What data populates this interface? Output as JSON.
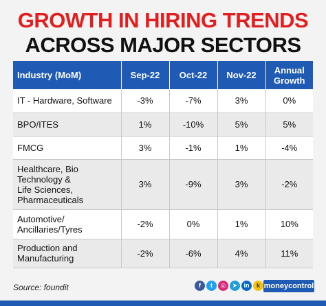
{
  "title_line1": "GROWTH IN HIRING TRENDS",
  "title_line2": "ACROSS MAJOR SECTORS",
  "source": "Source: foundit",
  "brand": "moneycontrol",
  "colors": {
    "title_red": "#e02020",
    "header_blue": "#1f5bb5",
    "brand_blue": "#1f5bb5"
  },
  "social_icons": [
    "facebook-icon",
    "twitter-icon",
    "instagram-icon",
    "telegram-icon",
    "linkedin-icon",
    "koo-icon"
  ],
  "chart_data": {
    "type": "table",
    "columns": [
      "Industry (MoM)",
      "Sep-22",
      "Oct-22",
      "Nov-22",
      "Annual\nGrowth"
    ],
    "rows": [
      {
        "industry": [
          "IT - Hardware, Software"
        ],
        "values": [
          "-3%",
          "-7%",
          "3%",
          "0%"
        ]
      },
      {
        "industry": [
          "BPO/ITES"
        ],
        "values": [
          "1%",
          "-10%",
          "5%",
          "5%"
        ]
      },
      {
        "industry": [
          "FMCG"
        ],
        "values": [
          "3%",
          "-1%",
          "1%",
          "-4%"
        ]
      },
      {
        "industry": [
          "Healthcare, Bio",
          "Technology &",
          "Life Sciences,",
          "Pharmaceuticals"
        ],
        "values": [
          "3%",
          "-9%",
          "3%",
          "-2%"
        ]
      },
      {
        "industry": [
          "Automotive/",
          "Ancillaries/Tyres"
        ],
        "values": [
          "-2%",
          "0%",
          "1%",
          "10%"
        ]
      },
      {
        "industry": [
          "Production and",
          "Manufacturing"
        ],
        "values": [
          "-2%",
          "-6%",
          "4%",
          "11%"
        ]
      }
    ]
  }
}
